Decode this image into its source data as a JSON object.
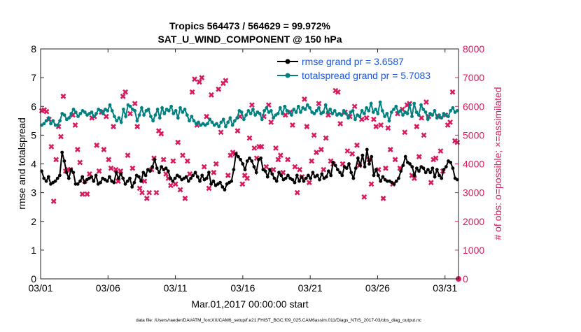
{
  "chart_data": {
    "type": "line",
    "title": "Tropics 564473 / 564629 = 99.972%",
    "subtitle": "SAT_U_WIND_COMPONENT @ 150 hPa",
    "xlabel": "Mar.01,2017 00:00:00 start",
    "ylabel": "rmse and totalspread",
    "y2label": "# of obs: o=possible; ×=assimilated",
    "footnote": "data file: /Users/raeder/DAI/ATM_forcXX/CAM6_setup/f.e21.FHIST_BGC.f09_025.CAM6assim.011/Diags_NTrS_2017-03/obs_diag_output.nc",
    "x_tick_labels": [
      "03/01",
      "03/06",
      "03/11",
      "03/16",
      "03/21",
      "03/26",
      "03/31"
    ],
    "x_tick_days": [
      0,
      5,
      10,
      15,
      20,
      25,
      30
    ],
    "xlim_days": [
      0,
      31
    ],
    "ylim": [
      0,
      8
    ],
    "y_ticks": [
      "0",
      "1",
      "2",
      "3",
      "4",
      "5",
      "6",
      "7",
      "8"
    ],
    "y2lim": [
      0,
      8000
    ],
    "y2_ticks": [
      "0",
      "1000",
      "2000",
      "3000",
      "4000",
      "5000",
      "6000",
      "7000",
      "8000"
    ],
    "legend_position": "top-right",
    "colors": {
      "rmse": "#000000",
      "spread": "#008080",
      "obs": "#d81b60",
      "legend_text": "#1a56e6"
    },
    "series": [
      {
        "name": "rmse",
        "legend_label": "rmse grand pr = 3.6587",
        "values": [
          3.75,
          3.5,
          3.4,
          3.55,
          3.3,
          3.35,
          3.4,
          3.5,
          3.6,
          4.4,
          4.1,
          3.7,
          3.5,
          3.8,
          3.7,
          3.3,
          3.3,
          3.4,
          3.55,
          3.35,
          3.45,
          3.5,
          3.55,
          3.4,
          3.6,
          3.3,
          3.35,
          3.5,
          3.45,
          3.4,
          3.55,
          3.4,
          3.35,
          3.7,
          3.5,
          3.65,
          3.5,
          3.3,
          3.4,
          3.5,
          3.2,
          3.35,
          3.6,
          3.55,
          3.4,
          3.7,
          3.6,
          3.8,
          3.75,
          3.9,
          4.15,
          3.85,
          3.7,
          3.9,
          3.8,
          3.85,
          3.75,
          3.5,
          3.4,
          3.5,
          3.6,
          3.55,
          3.45,
          3.5,
          3.55,
          3.4,
          3.5,
          3.6,
          3.7,
          3.55,
          3.4,
          3.6,
          3.45,
          3.5,
          3.7,
          3.3,
          3.4,
          3.25,
          3.3,
          3.35,
          3.2,
          3.1,
          3.3,
          3.35,
          3.4,
          3.8,
          4.35,
          4.25,
          4.15,
          4.0,
          3.8,
          4.1,
          4.2,
          4.1,
          3.9,
          3.7,
          4.15,
          4.2,
          3.8,
          3.75,
          3.55,
          3.8,
          3.65,
          3.5,
          3.4,
          3.7,
          3.6,
          3.45,
          3.5,
          3.6,
          3.5,
          3.45,
          3.35,
          3.6,
          3.4,
          3.55,
          3.4,
          3.5,
          3.6,
          3.5,
          3.7,
          3.55,
          3.6,
          3.45,
          3.65,
          3.5,
          3.55,
          3.75,
          3.6,
          4.05,
          3.95,
          3.8,
          3.7,
          3.6,
          3.9,
          3.85,
          4.0,
          3.7,
          3.5,
          3.85,
          4.2,
          3.95,
          4.3,
          3.9,
          4.5,
          4.0,
          4.25,
          3.6,
          3.8,
          3.6,
          3.4,
          3.55,
          3.45,
          3.4,
          3.4,
          3.35,
          3.3,
          3.4,
          3.5,
          3.75,
          3.95,
          4.25,
          4.05,
          4.0,
          3.9,
          3.6,
          3.85,
          3.75,
          3.9,
          3.85,
          3.7,
          3.8,
          3.7,
          3.85,
          3.55,
          3.8,
          3.6,
          3.5,
          3.8,
          3.9,
          4.1,
          4.05,
          3.85,
          3.5,
          3.45
        ]
      },
      {
        "name": "totalspread",
        "legend_label": "totalspread grand pr = 5.7083",
        "values": [
          5.35,
          5.4,
          5.5,
          5.6,
          5.4,
          5.5,
          5.35,
          5.35,
          5.5,
          5.75,
          5.7,
          5.55,
          5.6,
          5.75,
          5.9,
          5.8,
          5.65,
          5.75,
          5.85,
          5.8,
          5.7,
          5.75,
          5.8,
          5.65,
          5.75,
          5.9,
          5.85,
          5.75,
          5.9,
          5.85,
          6.05,
          5.85,
          5.65,
          5.5,
          5.6,
          5.45,
          5.9,
          5.65,
          6.05,
          6.0,
          5.9,
          5.85,
          5.5,
          5.7,
          5.95,
          5.7,
          5.85,
          5.9,
          5.65,
          5.5,
          5.7,
          5.9,
          5.6,
          5.95,
          5.75,
          5.9,
          5.85,
          6.0,
          5.75,
          5.85,
          5.6,
          5.95,
          5.8,
          5.9,
          5.7,
          5.5,
          5.65,
          5.5,
          5.4,
          5.45,
          5.35,
          5.4,
          5.35,
          5.4,
          5.55,
          5.45,
          5.35,
          5.4,
          5.3,
          5.45,
          5.55,
          5.3,
          5.45,
          5.6,
          5.35,
          5.5,
          5.6,
          5.85,
          5.8,
          5.55,
          5.7,
          5.85,
          5.75,
          5.9,
          5.7,
          5.8,
          5.75,
          5.55,
          5.85,
          5.95,
          5.8,
          5.85,
          5.6,
          5.7,
          5.75,
          5.95,
          5.75,
          6.0,
          5.85,
          5.8,
          5.7,
          5.9,
          5.8,
          6.0,
          5.8,
          5.95,
          5.9,
          6.05,
          5.95,
          5.8,
          5.75,
          5.85,
          5.95,
          5.75,
          5.8,
          6.05,
          5.8,
          5.9,
          5.75,
          5.85,
          5.7,
          5.75,
          5.7,
          5.85,
          5.75,
          5.6,
          5.8,
          5.85,
          5.55,
          5.7,
          5.65,
          5.85,
          5.75,
          5.95,
          5.85,
          6.1,
          5.8,
          5.9,
          5.75,
          6.15,
          5.85,
          5.65,
          5.75,
          5.5,
          5.8,
          5.9,
          6.0,
          5.8,
          5.85,
          5.7,
          5.8,
          5.75,
          6.05,
          5.65,
          6.1,
          5.8,
          5.7,
          6.05,
          5.9,
          5.8,
          5.55,
          5.75,
          5.7,
          5.85,
          5.6,
          5.7,
          5.6,
          5.75,
          5.7,
          5.65,
          5.85,
          5.95,
          5.8,
          5.85
        ]
      },
      {
        "name": "obs_assimilated",
        "values": [
          5850,
          5880,
          5820,
          5550,
          4600,
          2700,
          4150,
          5300,
          4950,
          6350,
          3750,
          3800,
          3800,
          5700,
          5350,
          4500,
          4050,
          2950,
          3400,
          2950,
          3650,
          5600,
          5650,
          4650,
          3750,
          5800,
          4500,
          5650,
          4150,
          3850,
          5300,
          3800,
          3400,
          3750,
          6350,
          6500,
          4300,
          5750,
          3850,
          6100,
          5300,
          3150,
          3000,
          3400,
          2800,
          3000,
          3800,
          4200,
          3000,
          5150,
          5050,
          4150,
          3650,
          3500,
          3250,
          4100,
          3300,
          4750,
          3100,
          4300,
          2800,
          4100,
          3650,
          6500,
          6950,
          5350,
          6850,
          7000,
          3900,
          5650,
          3150,
          6400,
          3700,
          4000,
          6600,
          5100,
          6800,
          6900,
          3600,
          4300,
          4400,
          4350,
          5150,
          5650,
          3300,
          3600,
          3500,
          4900,
          6050,
          4550,
          4200,
          4600,
          4600,
          5650,
          3900,
          6050,
          5450,
          3800,
          4550,
          4150,
          4300,
          3700,
          5700,
          4150,
          5800,
          5350,
          3900,
          3000,
          3800,
          3550,
          6250,
          5300,
          3350,
          4100,
          5000,
          4400,
          6100,
          4500,
          3800,
          4900,
          5700,
          4100,
          4000,
          6550,
          6500,
          5400,
          4000,
          5800,
          4450,
          5650,
          4350,
          6000,
          4650,
          3950,
          5550,
          2850,
          5600,
          4150,
          3300,
          5550,
          5300,
          3800,
          5350,
          2800,
          3850,
          5250,
          4500,
          3300,
          4150,
          5750,
          3850,
          5900,
          5100,
          6050,
          6100,
          3600,
          3500,
          5300,
          4250,
          5600,
          5000,
          6150,
          5650,
          3350,
          4150,
          4200,
          5650,
          4450,
          3750,
          5700,
          5350,
          5450,
          6500,
          4800,
          4750
        ]
      }
    ]
  }
}
